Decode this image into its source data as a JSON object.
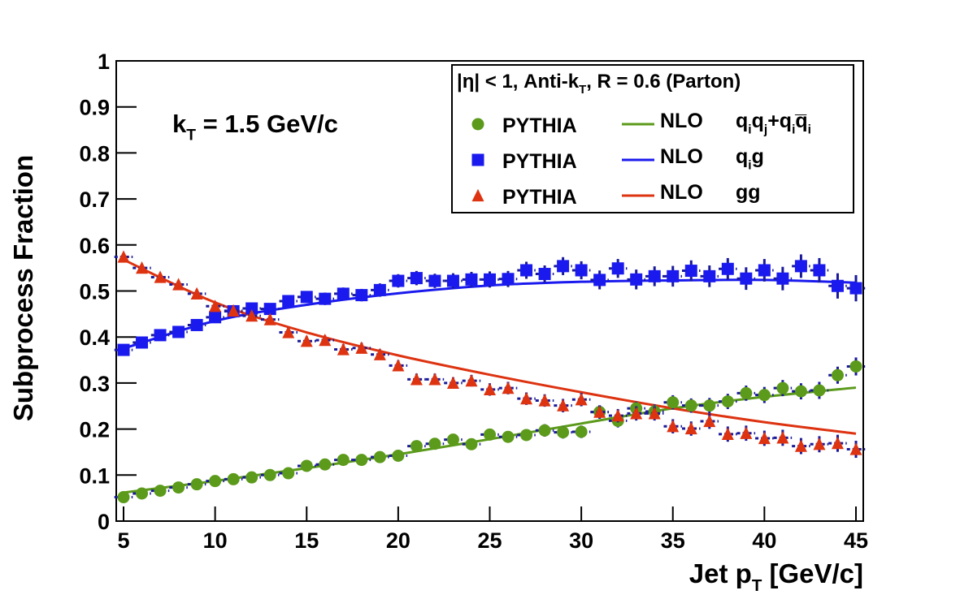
{
  "chart_data": {
    "type": "scatter",
    "ylabel": "Subprocess Fraction",
    "xlabel": [
      {
        "text": "Jet p"
      },
      {
        "sub": "T"
      },
      {
        "text": " [GeV/c]"
      }
    ],
    "annotation": [
      {
        "text": "k"
      },
      {
        "sub": "T"
      },
      {
        "text": " = 1.5 GeV/c"
      }
    ],
    "legend_title": [
      {
        "text": "|η| < 1, Anti-k"
      },
      {
        "sub": "T"
      },
      {
        "text": ", R = 0.6 (Parton)"
      }
    ],
    "xlim": [
      4.6,
      45.4
    ],
    "ylim": [
      0,
      1
    ],
    "xticks": [
      5,
      10,
      15,
      20,
      25,
      30,
      35,
      40,
      45
    ],
    "yticks": [
      0,
      0.1,
      0.2,
      0.3,
      0.4,
      0.5,
      0.6,
      0.7,
      0.8,
      0.9,
      1
    ],
    "x": [
      5,
      6,
      7,
      8,
      9,
      10,
      11,
      12,
      13,
      14,
      15,
      16,
      17,
      18,
      19,
      20,
      21,
      22,
      23,
      24,
      25,
      26,
      27,
      28,
      29,
      30,
      31,
      32,
      33,
      34,
      35,
      36,
      37,
      38,
      39,
      40,
      41,
      42,
      43,
      44,
      45
    ],
    "series": [
      {
        "name": "PYTHIA",
        "marker": "circle",
        "color": "#5b9a1a",
        "values": [
          0.052,
          0.06,
          0.066,
          0.073,
          0.08,
          0.087,
          0.091,
          0.095,
          0.1,
          0.104,
          0.12,
          0.123,
          0.133,
          0.133,
          0.139,
          0.142,
          0.163,
          0.168,
          0.177,
          0.167,
          0.188,
          0.183,
          0.187,
          0.197,
          0.193,
          0.194,
          0.237,
          0.218,
          0.245,
          0.238,
          0.258,
          0.251,
          0.251,
          0.26,
          0.278,
          0.274,
          0.289,
          0.282,
          0.284,
          0.317,
          0.336
        ],
        "errors": [
          0.004,
          0.004,
          0.004,
          0.004,
          0.005,
          0.005,
          0.005,
          0.005,
          0.005,
          0.006,
          0.006,
          0.006,
          0.006,
          0.007,
          0.007,
          0.007,
          0.008,
          0.008,
          0.008,
          0.008,
          0.009,
          0.009,
          0.009,
          0.01,
          0.01,
          0.01,
          0.011,
          0.011,
          0.011,
          0.012,
          0.012,
          0.012,
          0.013,
          0.013,
          0.013,
          0.014,
          0.014,
          0.014,
          0.015,
          0.015,
          0.016
        ]
      },
      {
        "name": "PYTHIA",
        "marker": "square",
        "color": "#1a1aee",
        "values": [
          0.372,
          0.388,
          0.404,
          0.411,
          0.426,
          0.443,
          0.456,
          0.462,
          0.461,
          0.478,
          0.487,
          0.483,
          0.494,
          0.491,
          0.502,
          0.522,
          0.528,
          0.522,
          0.522,
          0.525,
          0.525,
          0.526,
          0.545,
          0.537,
          0.554,
          0.545,
          0.524,
          0.549,
          0.525,
          0.532,
          0.532,
          0.544,
          0.532,
          0.548,
          0.527,
          0.545,
          0.527,
          0.554,
          0.545,
          0.511,
          0.506
        ],
        "errors": [
          0.006,
          0.006,
          0.006,
          0.007,
          0.007,
          0.007,
          0.008,
          0.008,
          0.008,
          0.009,
          0.009,
          0.01,
          0.01,
          0.01,
          0.011,
          0.011,
          0.012,
          0.012,
          0.013,
          0.013,
          0.014,
          0.014,
          0.015,
          0.015,
          0.016,
          0.016,
          0.017,
          0.017,
          0.018,
          0.018,
          0.019,
          0.019,
          0.02,
          0.02,
          0.021,
          0.021,
          0.022,
          0.022,
          0.023,
          0.024,
          0.025
        ]
      },
      {
        "name": "PYTHIA",
        "marker": "triangle",
        "color": "#dd3311",
        "values": [
          0.574,
          0.55,
          0.53,
          0.514,
          0.494,
          0.467,
          0.457,
          0.446,
          0.438,
          0.41,
          0.391,
          0.393,
          0.373,
          0.376,
          0.362,
          0.338,
          0.308,
          0.308,
          0.3,
          0.305,
          0.286,
          0.289,
          0.266,
          0.262,
          0.251,
          0.264,
          0.237,
          0.229,
          0.234,
          0.234,
          0.206,
          0.201,
          0.217,
          0.189,
          0.191,
          0.18,
          0.181,
          0.163,
          0.167,
          0.169,
          0.156
        ],
        "errors": [
          0.005,
          0.005,
          0.005,
          0.005,
          0.006,
          0.006,
          0.006,
          0.006,
          0.007,
          0.007,
          0.007,
          0.007,
          0.008,
          0.008,
          0.008,
          0.008,
          0.009,
          0.009,
          0.009,
          0.009,
          0.01,
          0.01,
          0.01,
          0.01,
          0.011,
          0.011,
          0.011,
          0.011,
          0.012,
          0.012,
          0.012,
          0.012,
          0.013,
          0.013,
          0.013,
          0.013,
          0.014,
          0.014,
          0.014,
          0.015,
          0.015
        ]
      }
    ],
    "line_x": [
      5,
      10,
      15,
      20,
      25,
      30,
      35,
      40,
      45
    ],
    "lines": [
      {
        "name": "NLO",
        "color": "#5b9a1a",
        "values": [
          0.062,
          0.087,
          0.115,
          0.145,
          0.178,
          0.212,
          0.245,
          0.27,
          0.29
        ],
        "label": [
          {
            "text": "q"
          },
          {
            "sub": "i"
          },
          {
            "text": "q"
          },
          {
            "sub": "j"
          },
          {
            "text": "+q"
          },
          {
            "sub": "i"
          },
          {
            "text": "q̅"
          },
          {
            "sub": "i"
          }
        ]
      },
      {
        "name": "NLO",
        "color": "#1a1aee",
        "values": [
          0.375,
          0.435,
          0.47,
          0.495,
          0.512,
          0.52,
          0.523,
          0.524,
          0.518
        ],
        "label": [
          {
            "text": "q"
          },
          {
            "sub": "i"
          },
          {
            "text": "g"
          }
        ]
      },
      {
        "name": "NLO",
        "color": "#dd3311",
        "values": [
          0.568,
          0.475,
          0.41,
          0.36,
          0.318,
          0.28,
          0.245,
          0.215,
          0.19
        ],
        "label": [
          {
            "text": "gg"
          }
        ]
      }
    ]
  }
}
